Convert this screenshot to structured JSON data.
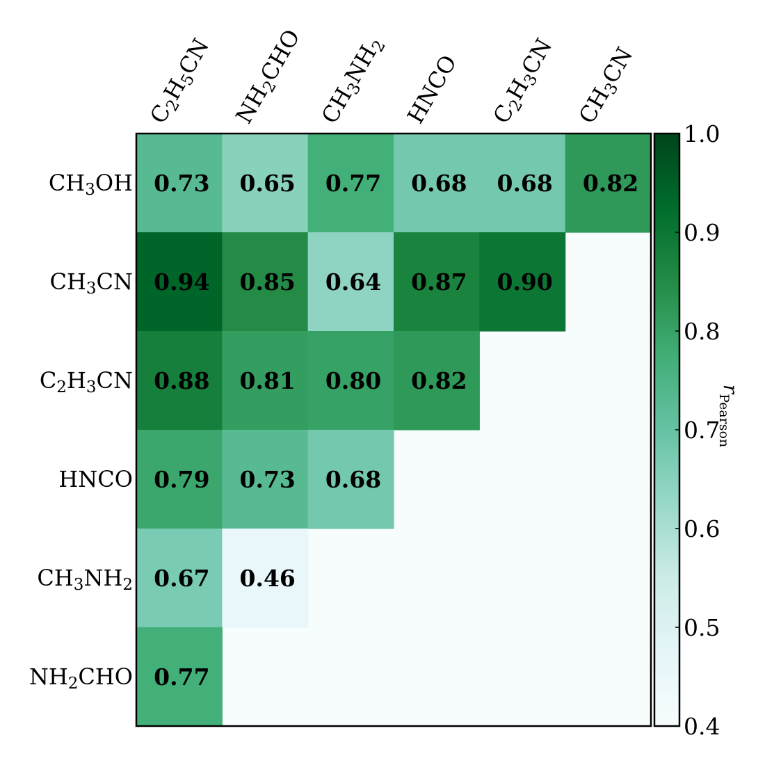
{
  "chart_data": {
    "type": "heatmap",
    "rows": [
      {
        "label": "CH3OH",
        "parts": [
          [
            "CH",
            ""
          ],
          [
            "3",
            "sub"
          ],
          [
            "OH",
            ""
          ]
        ]
      },
      {
        "label": "CH3CN",
        "parts": [
          [
            "CH",
            ""
          ],
          [
            "3",
            "sub"
          ],
          [
            "CN",
            ""
          ]
        ]
      },
      {
        "label": "C2H3CN",
        "parts": [
          [
            "C",
            ""
          ],
          [
            "2",
            "sub"
          ],
          [
            "H",
            ""
          ],
          [
            "3",
            "sub"
          ],
          [
            "CN",
            ""
          ]
        ]
      },
      {
        "label": "HNCO",
        "parts": [
          [
            "HNCO",
            ""
          ]
        ]
      },
      {
        "label": "CH3NH2",
        "parts": [
          [
            "CH",
            ""
          ],
          [
            "3",
            "sub"
          ],
          [
            "NH",
            ""
          ],
          [
            "2",
            "sub"
          ]
        ]
      },
      {
        "label": "NH2CHO",
        "parts": [
          [
            "NH",
            ""
          ],
          [
            "2",
            "sub"
          ],
          [
            "CHO",
            ""
          ]
        ]
      }
    ],
    "columns": [
      {
        "label": "C2H5CN",
        "parts": [
          [
            "C",
            ""
          ],
          [
            "2",
            "sub"
          ],
          [
            "H",
            ""
          ],
          [
            "5",
            "sub"
          ],
          [
            "CN",
            ""
          ]
        ]
      },
      {
        "label": "NH2CHO",
        "parts": [
          [
            "NH",
            ""
          ],
          [
            "2",
            "sub"
          ],
          [
            "CHO",
            ""
          ]
        ]
      },
      {
        "label": "CH3NH2",
        "parts": [
          [
            "CH",
            ""
          ],
          [
            "3",
            "sub"
          ],
          [
            "NH",
            ""
          ],
          [
            "2",
            "sub"
          ]
        ]
      },
      {
        "label": "HNCO",
        "parts": [
          [
            "HNCO",
            ""
          ]
        ]
      },
      {
        "label": "C2H3CN",
        "parts": [
          [
            "C",
            ""
          ],
          [
            "2",
            "sub"
          ],
          [
            "H",
            ""
          ],
          [
            "3",
            "sub"
          ],
          [
            "CN",
            ""
          ]
        ]
      },
      {
        "label": "CH3CN",
        "parts": [
          [
            "CH",
            ""
          ],
          [
            "3",
            "sub"
          ],
          [
            "CN",
            ""
          ]
        ]
      }
    ],
    "values": [
      [
        0.73,
        0.65,
        0.77,
        0.68,
        0.68,
        0.82
      ],
      [
        0.94,
        0.85,
        0.64,
        0.87,
        0.9,
        null
      ],
      [
        0.88,
        0.81,
        0.8,
        0.82,
        null,
        null
      ],
      [
        0.79,
        0.73,
        0.68,
        null,
        null,
        null
      ],
      [
        0.67,
        0.46,
        null,
        null,
        null,
        null
      ],
      [
        0.77,
        null,
        null,
        null,
        null,
        null
      ]
    ],
    "value_labels": [
      [
        "0.73",
        "0.65",
        "0.77",
        "0.68",
        "0.68",
        "0.82"
      ],
      [
        "0.94",
        "0.85",
        "0.64",
        "0.87",
        "0.90",
        ""
      ],
      [
        "0.88",
        "0.81",
        "0.80",
        "0.82",
        "",
        ""
      ],
      [
        "0.79",
        "0.73",
        "0.68",
        "",
        "",
        ""
      ],
      [
        "0.67",
        "0.46",
        "",
        "",
        "",
        ""
      ],
      [
        "0.77",
        "",
        "",
        "",
        "",
        ""
      ]
    ],
    "empty_color": "#f7fcfd",
    "colorbar": {
      "title_main": "r",
      "title_sub": "Pearson",
      "vmin": 0.4,
      "vmax": 1.0,
      "ticks": [
        "0.4",
        "0.5",
        "0.6",
        "0.7",
        "0.8",
        "0.9",
        "1.0"
      ],
      "colormap": "BuGn",
      "stops": [
        "#f7fcfd",
        "#e5f5f9",
        "#ccece6",
        "#99d8c9",
        "#66c2a4",
        "#41ae76",
        "#238b45",
        "#006d2c",
        "#00441b"
      ]
    }
  }
}
